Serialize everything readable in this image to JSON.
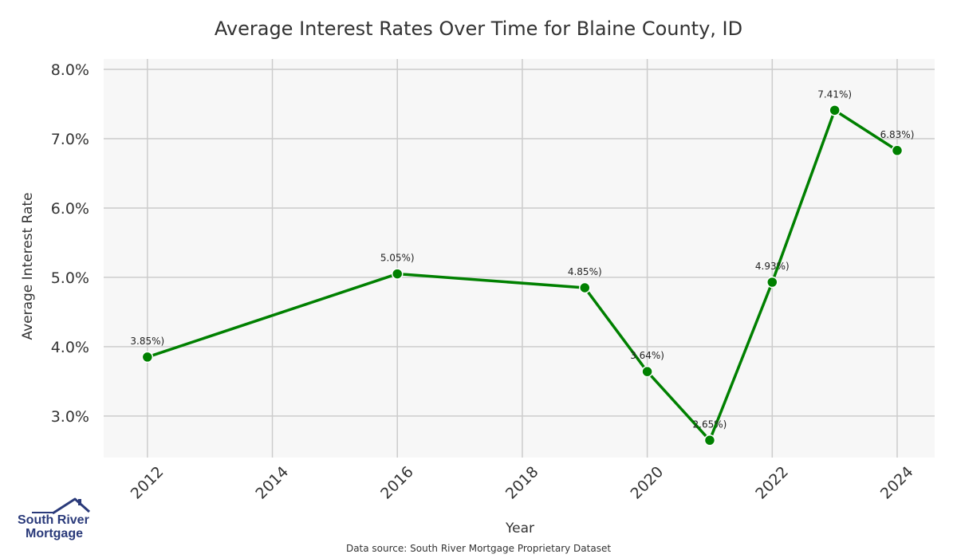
{
  "chart_data": {
    "type": "line",
    "title": "Average Interest Rates Over Time for Blaine County, ID",
    "xlabel": "Year",
    "ylabel": "Average Interest Rate",
    "xlim": [
      2011.3,
      2024.6
    ],
    "ylim": [
      2.4,
      8.15
    ],
    "x_ticks": [
      2012,
      2014,
      2016,
      2018,
      2020,
      2022,
      2024
    ],
    "x_tick_labels": [
      "2012",
      "2014",
      "2016",
      "2018",
      "2020",
      "2022",
      "2024"
    ],
    "y_ticks": [
      3,
      4,
      5,
      6,
      7,
      8
    ],
    "y_tick_labels": [
      "3.0%",
      "4.0%",
      "5.0%",
      "6.0%",
      "7.0%",
      "8.0%"
    ],
    "grid": true,
    "series": [
      {
        "color": "#008000",
        "x": [
          2012,
          2016,
          2019,
          2020,
          2021,
          2022,
          2023,
          2024
        ],
        "values": [
          3.85,
          5.05,
          4.85,
          3.64,
          2.65,
          4.93,
          7.41,
          6.83
        ],
        "data_labels": [
          "3.85%)",
          "5.05%)",
          "4.85%)",
          "3.64%)",
          "2.65%)",
          "4.93%)",
          "7.41%)",
          "6.83%)"
        ]
      }
    ]
  },
  "footer": {
    "source": "Data source: South River Mortgage Proprietary Dataset"
  },
  "logo": {
    "line1": "South River",
    "line2": "Mortgage",
    "icon": "house-roof-icon"
  },
  "colors": {
    "plot_background": "#f7f7f7",
    "grid": "#cccccc",
    "line": "#008000",
    "logo": "#2a3a7a"
  }
}
